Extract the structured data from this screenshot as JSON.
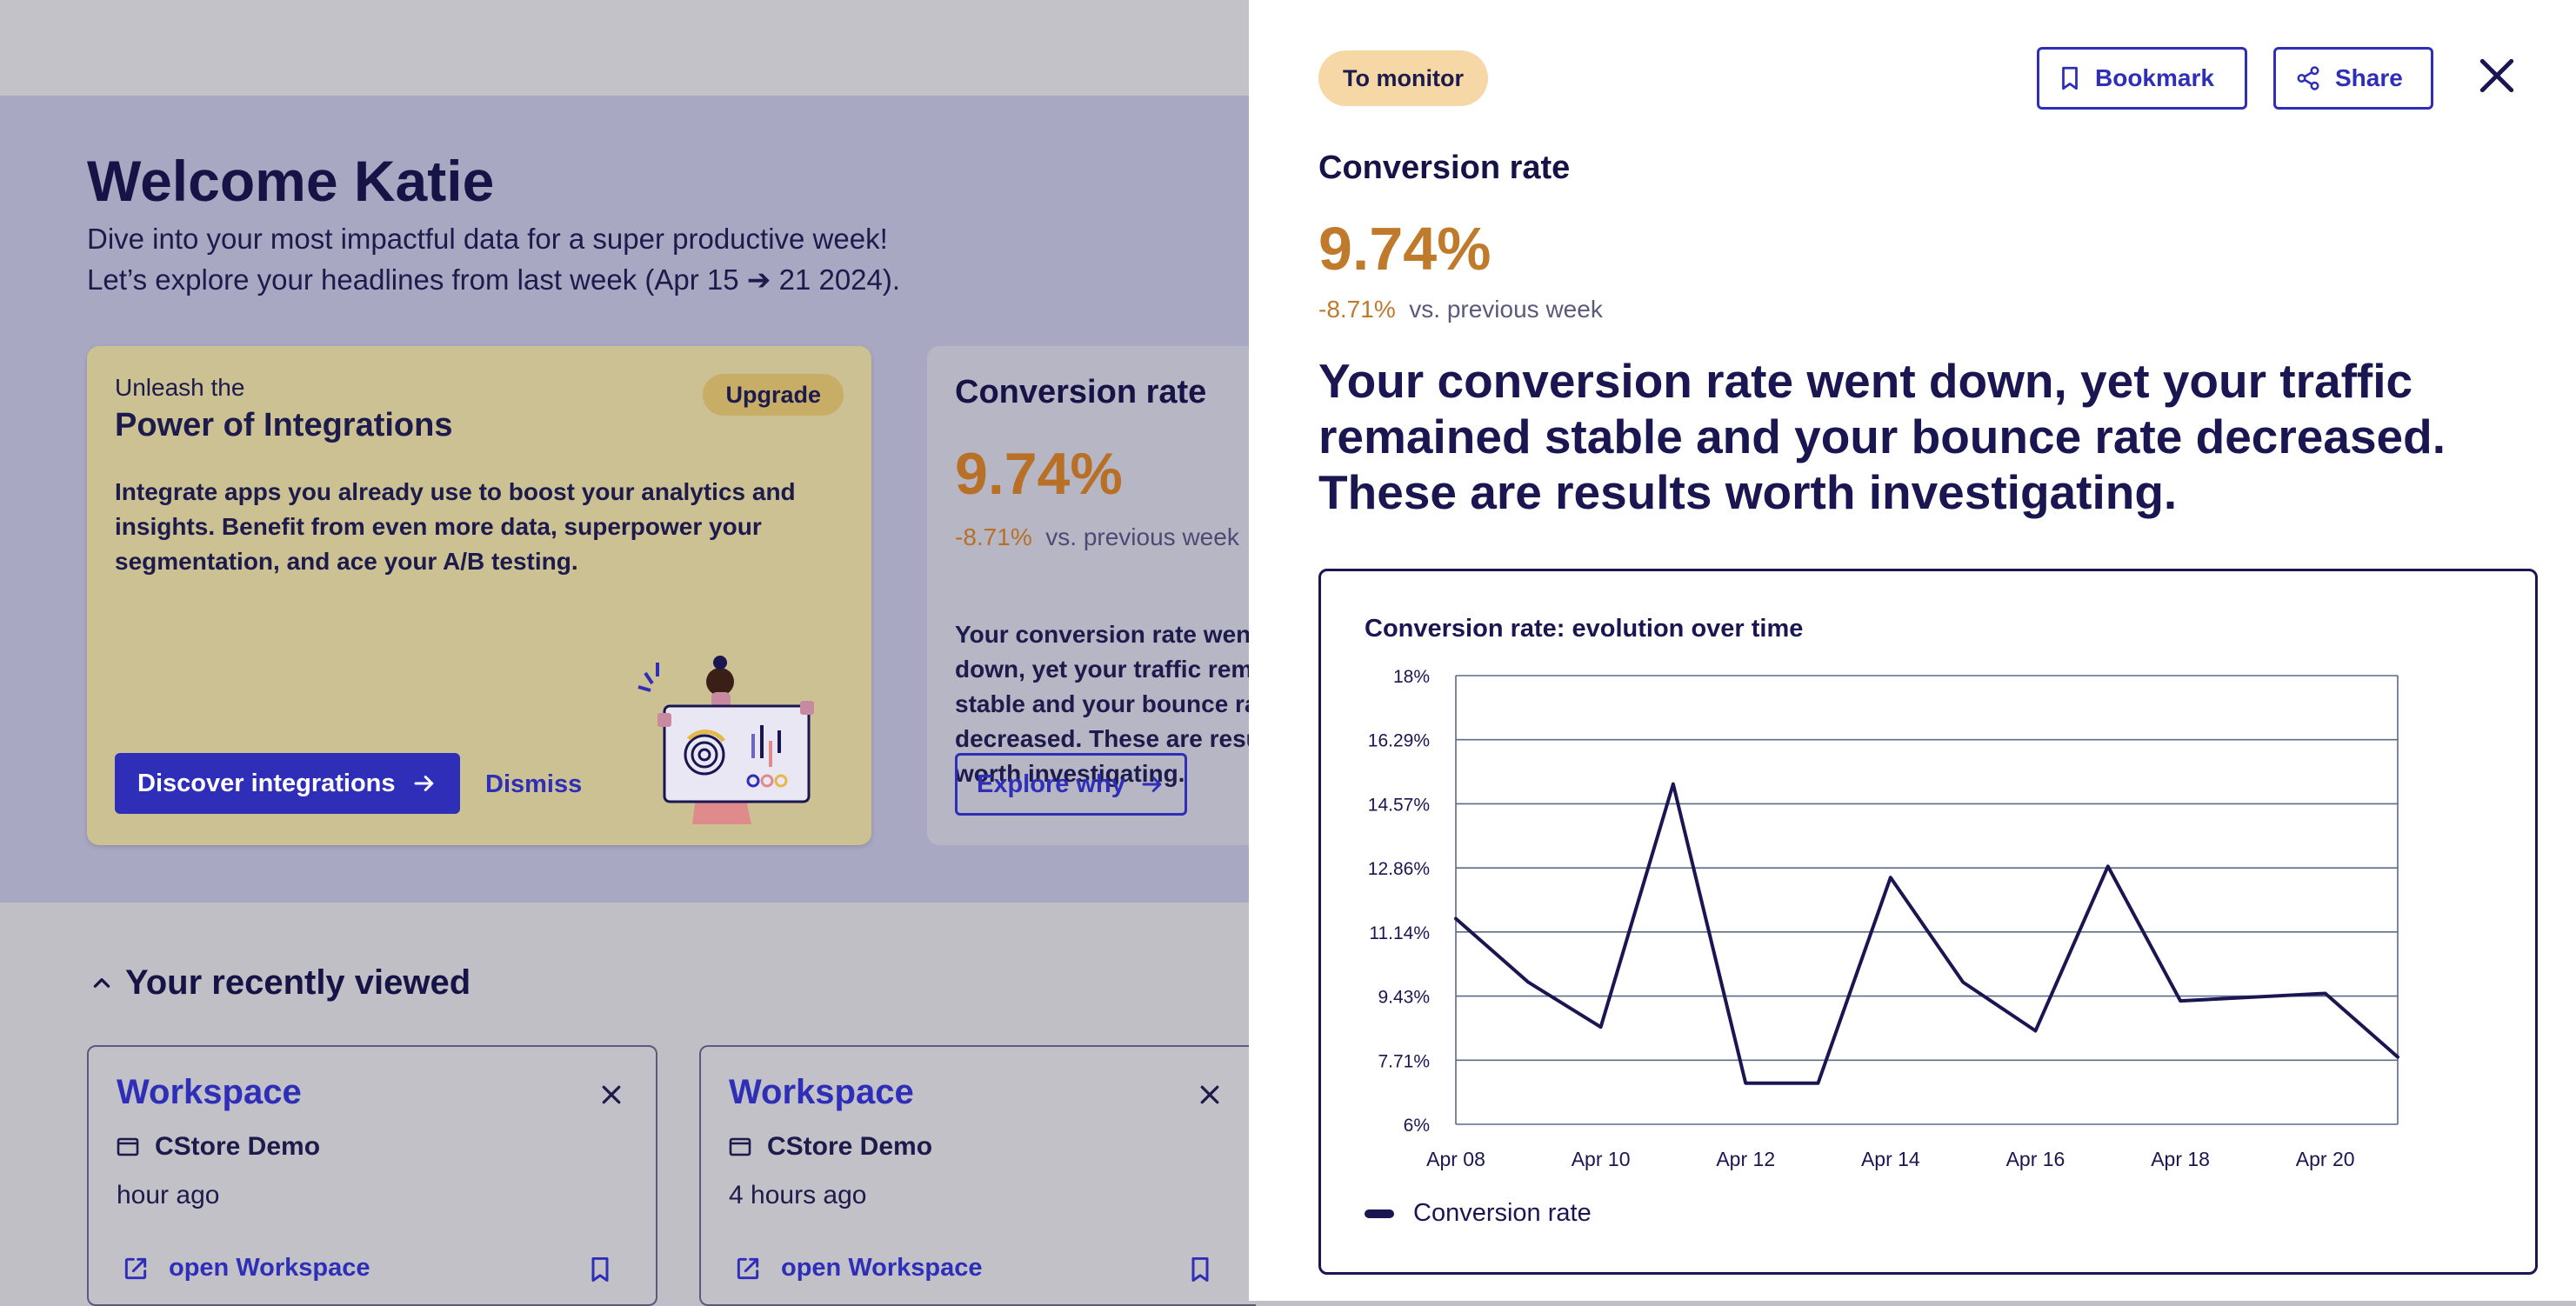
{
  "welcome": {
    "title": "Welcome Katie",
    "line1": "Dive into your most impactful data for a super productive week!",
    "line2": "Let’s explore your headlines from last week (Apr 15 ➔ 21 2024)."
  },
  "promo": {
    "kicker": "Unleash the",
    "title": "Power of Integrations",
    "badge": "Upgrade",
    "body": "Integrate apps you already use to boost your analytics and insights. Benefit from even more data, superpower your segmentation, and ace your A/B testing.",
    "primary_button": "Discover integrations",
    "dismiss": "Dismiss"
  },
  "conv_card": {
    "title": "Conversion rate",
    "value": "9.74%",
    "delta": "-8.71%",
    "delta_suffix": "vs. previous week",
    "text": "Your conversion rate went down, yet your traffic remained stable and your bounce rate decreased. These are results worth investigating.",
    "button": "Explore why"
  },
  "recent": {
    "title": "Your recently viewed",
    "cards": [
      {
        "title": "Workspace",
        "subtitle": "CStore Demo",
        "time": "hour ago",
        "link": "open Workspace"
      },
      {
        "title": "Workspace",
        "subtitle": "CStore Demo",
        "time": "4 hours ago",
        "link": "open Workspace"
      }
    ]
  },
  "drawer": {
    "tag": "To monitor",
    "bookmark": "Bookmark",
    "share": "Share",
    "title": "Conversion rate",
    "value": "9.74%",
    "delta": "-8.71%",
    "delta_suffix": "vs. previous week",
    "headline": "Your conversion rate went down, yet your traffic remained stable and your bounce rate decreased. These are results worth investigating."
  },
  "colors": {
    "accent": "#2e2eb8",
    "negative": "#c07a2c",
    "navy": "#1a1652",
    "tag_bg": "#f6d7a6"
  },
  "chart_data": {
    "type": "line",
    "title": "Conversion rate: evolution over time",
    "x": [
      "Apr 08",
      "Apr 09",
      "Apr 10",
      "Apr 11",
      "Apr 12",
      "Apr 13",
      "Apr 14",
      "Apr 15",
      "Apr 16",
      "Apr 17",
      "Apr 18",
      "Apr 19",
      "Apr 20",
      "Apr 21"
    ],
    "x_tick_labels": [
      "Apr 08",
      "Apr 10",
      "Apr 12",
      "Apr 14",
      "Apr 16",
      "Apr 18",
      "Apr 20"
    ],
    "y_tick_labels": [
      "6%",
      "7.71%",
      "9.43%",
      "11.14%",
      "12.86%",
      "14.57%",
      "16.29%",
      "18%"
    ],
    "ylim": [
      6,
      18
    ],
    "series": [
      {
        "name": "Conversion rate",
        "values": [
          11.5,
          9.8,
          8.6,
          15.1,
          7.1,
          7.1,
          12.6,
          9.8,
          8.5,
          12.9,
          9.3,
          9.4,
          9.5,
          7.8
        ]
      }
    ],
    "grid": true,
    "legend": "bottom-left"
  }
}
